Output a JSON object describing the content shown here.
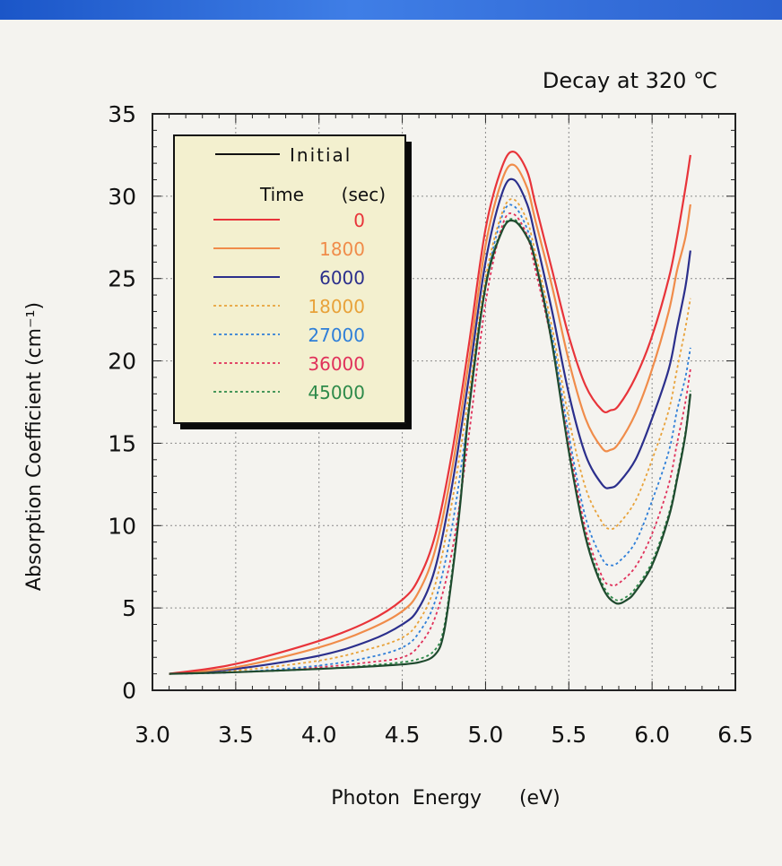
{
  "chart_data": {
    "type": "line",
    "title": "Decay at 320 ℃",
    "xlabel": "Photon  Energy      (eV)",
    "ylabel": "Absorption Coefficient  (cm⁻¹)",
    "xlim": [
      3.0,
      6.5
    ],
    "ylim": [
      0,
      35
    ],
    "x_ticks": [
      "3.0",
      "3.5",
      "4.0",
      "4.5",
      "5.0",
      "5.5",
      "6.0",
      "6.5"
    ],
    "y_ticks": [
      "0",
      "5",
      "10",
      "15",
      "20",
      "25",
      "30",
      "35"
    ],
    "grid": true,
    "legend_position": "top-left",
    "legend_header": {
      "initial_label": "Initial",
      "time_label": "Time",
      "unit_label": "(sec)"
    },
    "series": [
      {
        "name": "Initial",
        "color": "#1f4a2e",
        "dashed": false,
        "x": [
          3.1,
          3.5,
          4.0,
          4.4,
          4.6,
          4.7,
          4.75,
          4.8,
          4.85,
          4.9,
          5.0,
          5.1,
          5.17,
          5.25,
          5.3,
          5.4,
          5.5,
          5.6,
          5.7,
          5.78,
          5.85,
          5.9,
          6.0,
          6.1,
          6.15,
          6.2,
          6.23
        ],
        "y": [
          1.0,
          1.1,
          1.3,
          1.5,
          1.7,
          2.2,
          3.5,
          7.0,
          11.5,
          17.0,
          24.5,
          27.9,
          28.5,
          27.5,
          26.0,
          21.0,
          14.5,
          9.3,
          6.3,
          5.3,
          5.5,
          6.0,
          7.6,
          10.5,
          12.8,
          15.5,
          18.0
        ]
      },
      {
        "name": "0",
        "color": "#e8343a",
        "dashed": false,
        "x": [
          3.1,
          3.5,
          4.0,
          4.3,
          4.5,
          4.6,
          4.7,
          4.8,
          4.9,
          5.0,
          5.1,
          5.17,
          5.25,
          5.3,
          5.4,
          5.5,
          5.6,
          5.7,
          5.75,
          5.8,
          5.9,
          6.0,
          6.1,
          6.15,
          6.2,
          6.23
        ],
        "y": [
          1.0,
          1.6,
          3.0,
          4.2,
          5.5,
          6.8,
          9.5,
          14.5,
          21.0,
          28.0,
          31.8,
          32.7,
          31.5,
          29.5,
          25.5,
          21.5,
          18.5,
          17.0,
          17.0,
          17.3,
          19.0,
          21.5,
          25.0,
          27.5,
          30.5,
          32.5
        ]
      },
      {
        "name": "1800",
        "color": "#f08c4a",
        "dashed": false,
        "x": [
          3.1,
          3.5,
          4.0,
          4.3,
          4.5,
          4.6,
          4.7,
          4.8,
          4.9,
          5.0,
          5.1,
          5.17,
          5.25,
          5.3,
          5.4,
          5.5,
          5.6,
          5.7,
          5.75,
          5.8,
          5.9,
          6.0,
          6.1,
          6.15,
          6.2,
          6.23
        ],
        "y": [
          1.0,
          1.4,
          2.6,
          3.7,
          4.8,
          6.0,
          8.6,
          13.5,
          20.0,
          27.0,
          31.0,
          31.9,
          30.5,
          28.5,
          24.5,
          20.0,
          16.5,
          14.7,
          14.6,
          15.0,
          16.8,
          19.5,
          23.0,
          25.5,
          27.5,
          29.5
        ]
      },
      {
        "name": "6000",
        "color": "#2b2f8c",
        "dashed": false,
        "x": [
          3.1,
          3.5,
          4.0,
          4.3,
          4.5,
          4.6,
          4.7,
          4.8,
          4.9,
          5.0,
          5.1,
          5.17,
          5.25,
          5.3,
          5.4,
          5.5,
          5.6,
          5.7,
          5.75,
          5.8,
          5.9,
          6.0,
          6.1,
          6.15,
          6.2,
          6.23
        ],
        "y": [
          1.0,
          1.3,
          2.1,
          3.0,
          4.0,
          5.0,
          7.5,
          12.5,
          19.0,
          26.0,
          30.2,
          31.0,
          29.5,
          27.5,
          23.0,
          18.0,
          14.3,
          12.5,
          12.3,
          12.6,
          14.0,
          16.5,
          19.5,
          22.0,
          24.5,
          26.7
        ]
      },
      {
        "name": "18000",
        "color": "#e8a23a",
        "dashed": true,
        "x": [
          3.1,
          3.5,
          4.0,
          4.3,
          4.5,
          4.6,
          4.7,
          4.8,
          4.9,
          5.0,
          5.1,
          5.17,
          5.25,
          5.3,
          5.4,
          5.5,
          5.6,
          5.7,
          5.75,
          5.8,
          5.9,
          6.0,
          6.1,
          6.15,
          6.2,
          6.23
        ],
        "y": [
          1.0,
          1.2,
          1.8,
          2.5,
          3.2,
          4.2,
          6.5,
          11.5,
          18.0,
          25.0,
          29.0,
          29.8,
          28.5,
          26.5,
          22.0,
          16.5,
          12.3,
          10.2,
          9.8,
          10.1,
          11.5,
          14.0,
          17.0,
          19.5,
          22.0,
          23.8
        ]
      },
      {
        "name": "27000",
        "color": "#2f7fd8",
        "dashed": true,
        "x": [
          3.1,
          3.5,
          4.0,
          4.3,
          4.5,
          4.6,
          4.7,
          4.8,
          4.9,
          5.0,
          5.1,
          5.17,
          5.25,
          5.3,
          5.4,
          5.5,
          5.6,
          5.7,
          5.75,
          5.8,
          5.9,
          6.0,
          6.1,
          6.15,
          6.2,
          6.23
        ],
        "y": [
          1.0,
          1.1,
          1.5,
          2.0,
          2.6,
          3.5,
          5.5,
          10.0,
          17.0,
          24.5,
          28.8,
          29.4,
          28.0,
          26.0,
          21.5,
          15.5,
          10.5,
          8.0,
          7.6,
          7.8,
          9.0,
          11.5,
          14.5,
          17.0,
          19.0,
          20.8
        ]
      },
      {
        "name": "36000",
        "color": "#e0305a",
        "dashed": true,
        "x": [
          3.1,
          3.5,
          4.0,
          4.3,
          4.5,
          4.6,
          4.7,
          4.8,
          4.9,
          5.0,
          5.1,
          5.17,
          5.25,
          5.3,
          5.4,
          5.5,
          5.6,
          5.7,
          5.75,
          5.8,
          5.9,
          6.0,
          6.1,
          6.15,
          6.2,
          6.23
        ],
        "y": [
          1.0,
          1.1,
          1.4,
          1.7,
          2.0,
          2.7,
          4.5,
          8.5,
          15.5,
          23.5,
          28.2,
          28.9,
          27.6,
          25.5,
          21.0,
          15.0,
          9.8,
          6.9,
          6.4,
          6.5,
          7.5,
          9.5,
          12.5,
          15.0,
          17.5,
          19.5
        ]
      },
      {
        "name": "45000",
        "color": "#2e8a4a",
        "dashed": true,
        "x": [
          3.1,
          3.5,
          4.0,
          4.4,
          4.6,
          4.7,
          4.75,
          4.8,
          4.85,
          4.9,
          5.0,
          5.1,
          5.17,
          5.25,
          5.3,
          5.4,
          5.5,
          5.6,
          5.7,
          5.78,
          5.85,
          5.9,
          6.0,
          6.1,
          6.15,
          6.2,
          6.23
        ],
        "y": [
          1.0,
          1.1,
          1.3,
          1.6,
          1.9,
          2.5,
          3.8,
          7.3,
          11.8,
          17.3,
          24.7,
          28.0,
          28.6,
          27.6,
          26.1,
          21.2,
          14.7,
          9.5,
          6.5,
          5.5,
          5.7,
          6.2,
          7.8,
          10.7,
          13.0,
          15.7,
          18.2
        ]
      }
    ]
  }
}
